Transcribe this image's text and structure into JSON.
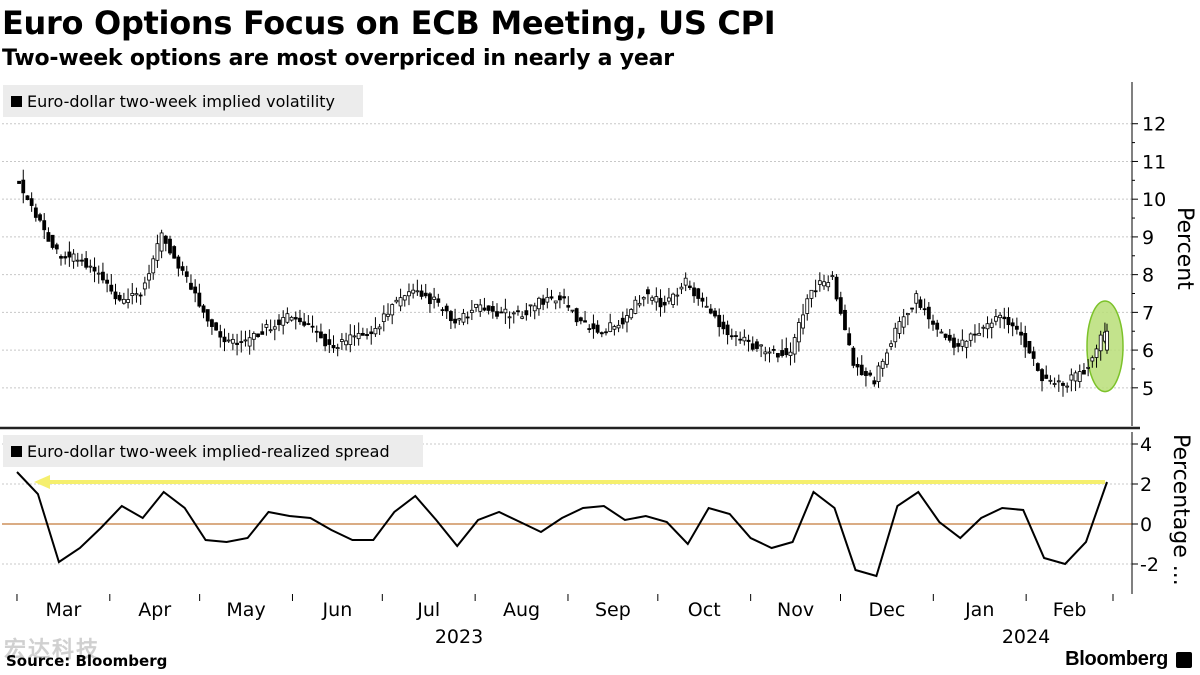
{
  "header": {
    "title": "Euro Options Focus on ECB Meeting, US CPI",
    "subtitle": "Two-week options are most overpriced in nearly a year"
  },
  "footer": {
    "source": "Source: Bloomberg",
    "brand": "Bloomberg",
    "watermark": "宏达科技"
  },
  "chart_data": [
    {
      "type": "candlestick",
      "legend": "Euro-dollar two-week implied volatility",
      "ylabel": "Percent",
      "ylim": [
        4.2,
        13.0
      ],
      "yticks": [
        5,
        6,
        7,
        8,
        9,
        10,
        11,
        12
      ],
      "x": [
        "2023-03-01",
        "2023-03-08",
        "2023-03-15",
        "2023-03-22",
        "2023-03-29",
        "2023-04-05",
        "2023-04-12",
        "2023-04-19",
        "2023-04-26",
        "2023-05-03",
        "2023-05-10",
        "2023-05-17",
        "2023-05-24",
        "2023-05-31",
        "2023-06-07",
        "2023-06-14",
        "2023-06-21",
        "2023-06-28",
        "2023-07-05",
        "2023-07-12",
        "2023-07-19",
        "2023-07-26",
        "2023-08-02",
        "2023-08-09",
        "2023-08-16",
        "2023-08-23",
        "2023-08-30",
        "2023-09-06",
        "2023-09-13",
        "2023-09-20",
        "2023-09-27",
        "2023-10-04",
        "2023-10-11",
        "2023-10-18",
        "2023-10-25",
        "2023-11-01",
        "2023-11-08",
        "2023-11-15",
        "2023-11-22",
        "2023-11-29",
        "2023-12-06",
        "2023-12-13",
        "2023-12-20",
        "2023-12-27",
        "2024-01-03",
        "2024-01-10",
        "2024-01-17",
        "2024-01-24",
        "2024-01-31",
        "2024-02-07",
        "2024-02-14",
        "2024-02-21",
        "2024-02-28"
      ],
      "values": [
        10.6,
        9.6,
        8.6,
        8.4,
        8.0,
        7.2,
        7.5,
        9.0,
        8.1,
        7.0,
        6.3,
        6.2,
        6.6,
        6.9,
        6.6,
        6.1,
        6.3,
        6.4,
        7.2,
        7.5,
        7.3,
        6.7,
        7.1,
        7.0,
        6.9,
        7.3,
        7.4,
        6.7,
        6.5,
        6.8,
        7.5,
        7.2,
        7.8,
        7.1,
        6.5,
        6.2,
        5.9,
        6.0,
        7.6,
        7.9,
        5.6,
        5.2,
        6.5,
        7.4,
        6.5,
        6.1,
        6.5,
        6.9,
        6.4,
        5.3,
        5.1,
        5.4,
        6.5
      ],
      "grid": true,
      "annotation": "green ellipse around latest values"
    },
    {
      "type": "line",
      "legend": "Euro-dollar two-week implied-realized spread",
      "ylabel": "Percentage ...",
      "ylim": [
        -3.5,
        4.6
      ],
      "yticks": [
        -2,
        0,
        2,
        4
      ],
      "reference_line": 0,
      "highlight_level": 2.1,
      "x": [
        "2023-03-01",
        "2023-03-08",
        "2023-03-15",
        "2023-03-22",
        "2023-03-29",
        "2023-04-05",
        "2023-04-12",
        "2023-04-19",
        "2023-04-26",
        "2023-05-03",
        "2023-05-10",
        "2023-05-17",
        "2023-05-24",
        "2023-05-31",
        "2023-06-07",
        "2023-06-14",
        "2023-06-21",
        "2023-06-28",
        "2023-07-05",
        "2023-07-12",
        "2023-07-19",
        "2023-07-26",
        "2023-08-02",
        "2023-08-09",
        "2023-08-16",
        "2023-08-23",
        "2023-08-30",
        "2023-09-06",
        "2023-09-13",
        "2023-09-20",
        "2023-09-27",
        "2023-10-04",
        "2023-10-11",
        "2023-10-18",
        "2023-10-25",
        "2023-11-01",
        "2023-11-08",
        "2023-11-15",
        "2023-11-22",
        "2023-11-29",
        "2023-12-06",
        "2023-12-13",
        "2023-12-20",
        "2023-12-27",
        "2024-01-03",
        "2024-01-10",
        "2024-01-17",
        "2024-01-24",
        "2024-01-31",
        "2024-02-07",
        "2024-02-14",
        "2024-02-21",
        "2024-02-28"
      ],
      "values": [
        2.6,
        1.5,
        -1.9,
        -1.2,
        -0.2,
        0.9,
        0.3,
        1.6,
        0.8,
        -0.8,
        -0.9,
        -0.7,
        0.6,
        0.4,
        0.3,
        -0.3,
        -0.8,
        -0.8,
        0.6,
        1.4,
        0.2,
        -1.1,
        0.2,
        0.6,
        0.1,
        -0.4,
        0.3,
        0.8,
        0.9,
        0.2,
        0.4,
        0.1,
        -1.0,
        0.8,
        0.5,
        -0.7,
        -1.2,
        -0.9,
        1.6,
        0.8,
        -2.3,
        -2.6,
        0.9,
        1.6,
        0.1,
        -0.7,
        0.3,
        0.8,
        0.7,
        -1.7,
        -2.0,
        -0.9,
        2.1
      ],
      "grid": true
    }
  ],
  "x_axis": {
    "months": [
      "Mar",
      "Apr",
      "May",
      "Jun",
      "Jul",
      "Aug",
      "Sep",
      "Oct",
      "Nov",
      "Dec",
      "Jan",
      "Feb"
    ],
    "years": [
      "2023",
      "2024"
    ]
  },
  "colors": {
    "line": "#000000",
    "grid": "#c8c8c8",
    "zero_line": "#c47a3a",
    "highlight_arrow": "#f5ef6e",
    "ellipse_fill": "#b9de78",
    "ellipse_stroke": "#7cc22a",
    "legend_bg": "#ececec"
  }
}
